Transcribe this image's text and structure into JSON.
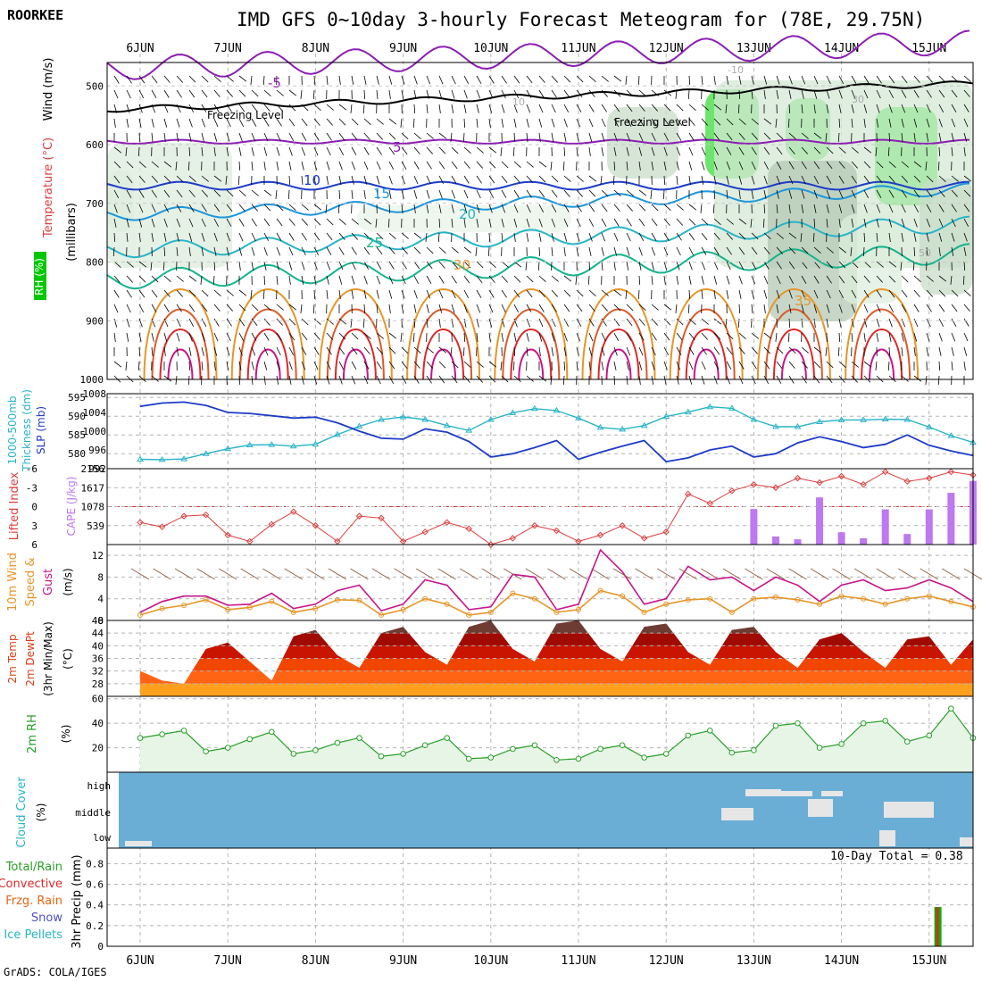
{
  "header": {
    "station": "ROORKEE",
    "title": "IMD GFS 0~10day 3-hourly Forecast Meteogram for (78E, 29.75N)",
    "credit": "GrADS: COLA/IGES",
    "precip_total": "10-Day Total = 0.38"
  },
  "dates": [
    "6JUN",
    "7JUN",
    "8JUN",
    "9JUN",
    "10JUN",
    "11JUN",
    "12JUN",
    "13JUN",
    "14JUN",
    "15JUN"
  ],
  "colors": {
    "purple": "#8c1eb4",
    "blue": "#1e3cc8",
    "cyan": "#28b4c8",
    "teal": "#14b48c",
    "orange": "#e69628",
    "red": "#dc2828",
    "magenta": "#c8148c",
    "rh_green": "#00dc00",
    "cloud_blue": "#6aaed6",
    "cape_purple": "#be78f0",
    "lifted_red": "#dc3c3c"
  },
  "panels": {
    "upper": {
      "labels": {
        "rh": "RH (%)",
        "temp": "Temperature (°C)",
        "wind": "Wind (m/s)",
        "y": "(millibars)"
      },
      "freezing_label": "Freezing Level",
      "contour_labels": [
        "-5",
        "5",
        "10",
        "15",
        "20",
        "25",
        "30",
        "35",
        "-10",
        "10",
        "30",
        "50"
      ]
    },
    "thick": {
      "label1": "1000-500mb",
      "label2": "Thickness (dm)",
      "label3": "SLP (mb)"
    },
    "cape": {
      "label1": "Lifted Index",
      "label2": "CAPE (J/kg)"
    },
    "wind10": {
      "label1": "10m Wind",
      "label2": "Speed &",
      "label3": "Gust",
      "unit": "(m/s)"
    },
    "temp2m": {
      "label1": "2m Temp",
      "label2": "2m DewPt",
      "label3": "(3hr Min/Max)",
      "unit": "(°C)"
    },
    "rh2m": {
      "label1": "2m RH",
      "unit": "(%)"
    },
    "cloud": {
      "label1": "Cloud Cover",
      "unit": "(%)",
      "levels": [
        "high",
        "middle",
        "low"
      ]
    },
    "precip": {
      "label1": "3hr Precip (mm)",
      "legend": [
        "Total/Rain",
        "Convective",
        "Frzg. Rain",
        "Snow",
        "Ice Pellets"
      ]
    }
  },
  "chart_data": [
    {
      "type": "contour",
      "title": "Upper-air temperature / RH / wind",
      "ylabel": "millibars",
      "y_ticks": [
        500,
        600,
        700,
        800,
        900,
        1000
      ],
      "ylim": [
        460,
        1000
      ],
      "x": [
        "6JUN",
        "7JUN",
        "8JUN",
        "9JUN",
        "10JUN",
        "11JUN",
        "12JUN",
        "13JUN",
        "14JUN",
        "15JUN"
      ],
      "temperature_contours_levels": [
        -5,
        5,
        10,
        15,
        20,
        25,
        30,
        35
      ],
      "temperature_contour_pressure": {
        "-5": 470,
        "5": 595,
        "10": 670,
        "15": 720,
        "20": 780,
        "25": 830
      },
      "freezing_level_mb": 540
    },
    {
      "type": "line",
      "title": "1000-500mb Thickness (dm) and SLP (mb)",
      "x_days": [
        0.0,
        0.25,
        0.5,
        0.75,
        1.0,
        1.25,
        1.5,
        1.75,
        2.0,
        2.25,
        2.5,
        2.75,
        3.0,
        3.25,
        3.5,
        3.75,
        4.0,
        4.25,
        4.5,
        4.75,
        5.0,
        5.25,
        5.5,
        5.75,
        6.0,
        6.25,
        6.5,
        6.75,
        7.0,
        7.25,
        7.5,
        7.75,
        8.0,
        8.25,
        8.5,
        8.75,
        9.0,
        9.25,
        9.5
      ],
      "thickness_axis": [
        580,
        585,
        590,
        595
      ],
      "slp_axis": [
        992,
        996,
        1000,
        1004,
        1008
      ],
      "series": [
        {
          "name": "Thickness (dm)",
          "values": [
            578.5,
            578.4,
            578.6,
            580.0,
            581.3,
            582.3,
            582.4,
            582.0,
            582.5,
            585.1,
            587.3,
            589.1,
            589.8,
            589.1,
            587.5,
            586.2,
            589.1,
            590.9,
            592.0,
            591.5,
            589.5,
            587.0,
            586.5,
            587.5,
            589.9,
            591.1,
            592.5,
            592.1,
            589.1,
            587.2,
            587.2,
            588.5,
            589.0,
            589.0,
            589.2,
            589.1,
            587.1,
            584.8,
            583.0
          ]
        },
        {
          "name": "SLP (mb)",
          "values": [
            1005.3,
            1006.0,
            1006.2,
            1005.5,
            1004.0,
            1003.8,
            1003.3,
            1002.8,
            1003.0,
            1001.8,
            1000.0,
            998.5,
            998.3,
            1000.5,
            999.8,
            997.8,
            994.5,
            995.2,
            996.5,
            998.0,
            994.0,
            995.5,
            996.8,
            998.0,
            993.5,
            994.3,
            996.0,
            996.8,
            994.5,
            995.2,
            997.5,
            998.8,
            997.8,
            996.5,
            997.2,
            999.2,
            997.0,
            995.8,
            994.8
          ]
        }
      ]
    },
    {
      "type": "bar",
      "title": "Lifted Index and CAPE (J/kg)",
      "li_axis": [
        6,
        3,
        0,
        -3,
        -6
      ],
      "cape_axis": [
        539,
        1078,
        1617,
        2156
      ],
      "x_days": [
        0.0,
        0.25,
        0.5,
        0.75,
        1.0,
        1.25,
        1.5,
        1.75,
        2.0,
        2.25,
        2.5,
        2.75,
        3.0,
        3.25,
        3.5,
        3.75,
        4.0,
        4.25,
        4.5,
        4.75,
        5.0,
        5.25,
        5.5,
        5.75,
        6.0,
        6.25,
        6.5,
        6.75,
        7.0,
        7.25,
        7.5,
        7.75,
        8.0,
        8.25,
        8.5,
        8.75,
        9.0,
        9.25,
        9.5
      ],
      "series": [
        {
          "name": "Lifted Index",
          "values": [
            2.5,
            3.2,
            1.5,
            1.3,
            4.5,
            5.5,
            2.8,
            0.8,
            3.0,
            5.5,
            1.5,
            1.8,
            5.5,
            4.0,
            2.5,
            3.5,
            6.0,
            5.0,
            3.0,
            3.8,
            5.5,
            4.5,
            3.0,
            5.0,
            4.0,
            -2.0,
            -0.5,
            -2.5,
            -3.5,
            -3.0,
            -4.5,
            -3.8,
            -4.8,
            -3.5,
            -5.5,
            -4.0,
            -4.5,
            -5.5,
            -5.0
          ]
        },
        {
          "name": "CAPE (J/kg)",
          "values": [
            0,
            0,
            0,
            0,
            0,
            0,
            0,
            0,
            0,
            0,
            0,
            0,
            0,
            0,
            0,
            0,
            0,
            0,
            0,
            0,
            0,
            0,
            0,
            0,
            0,
            0,
            0,
            0,
            1010,
            230,
            150,
            1340,
            350,
            180,
            1000,
            300,
            1000,
            1470,
            1810
          ]
        }
      ]
    },
    {
      "type": "line",
      "title": "10m Wind Speed & Gust (m/s)",
      "y_ticks": [
        0,
        4,
        8,
        12
      ],
      "x_days": [
        0.0,
        0.25,
        0.5,
        0.75,
        1.0,
        1.25,
        1.5,
        1.75,
        2.0,
        2.25,
        2.5,
        2.75,
        3.0,
        3.25,
        3.5,
        3.75,
        4.0,
        4.25,
        4.5,
        4.75,
        5.0,
        5.25,
        5.5,
        5.75,
        6.0,
        6.25,
        6.5,
        6.75,
        7.0,
        7.25,
        7.5,
        7.75,
        8.0,
        8.25,
        8.5,
        8.75,
        9.0,
        9.25,
        9.5
      ],
      "series": [
        {
          "name": "Speed",
          "values": [
            1.0,
            2.2,
            2.8,
            3.8,
            2.0,
            2.4,
            3.5,
            1.5,
            2.2,
            3.8,
            3.7,
            1.0,
            2.0,
            4.0,
            3.0,
            1.0,
            1.5,
            5.0,
            4.0,
            1.5,
            2.0,
            5.5,
            4.5,
            1.5,
            3.0,
            3.8,
            4.0,
            1.5,
            4.0,
            4.3,
            3.8,
            3.0,
            4.5,
            4.0,
            3.0,
            4.0,
            4.5,
            3.5,
            2.5
          ]
        },
        {
          "name": "Gust",
          "values": [
            1.5,
            3.5,
            4.5,
            4.5,
            2.8,
            3.0,
            5.0,
            2.2,
            3.0,
            5.5,
            6.5,
            1.8,
            3.0,
            7.5,
            6.5,
            2.0,
            2.5,
            8.5,
            8.0,
            2.0,
            3.0,
            13.0,
            9.0,
            3.0,
            4.0,
            10.0,
            7.5,
            8.0,
            5.5,
            8.0,
            6.5,
            3.5,
            6.5,
            7.5,
            5.5,
            6.0,
            7.5,
            6.0,
            3.5
          ]
        }
      ]
    },
    {
      "type": "area",
      "title": "2m Temp / 2m DewPt (°C)",
      "y_ticks": [
        28,
        32,
        36,
        40,
        44,
        48
      ],
      "x_days": [
        0.0,
        0.25,
        0.5,
        0.75,
        1.0,
        1.25,
        1.5,
        1.75,
        2.0,
        2.25,
        2.5,
        2.75,
        3.0,
        3.25,
        3.5,
        3.75,
        4.0,
        4.25,
        4.5,
        4.75,
        5.0,
        5.25,
        5.5,
        5.75,
        6.0,
        6.25,
        6.5,
        6.75,
        7.0,
        7.25,
        7.5,
        7.75,
        8.0,
        8.25,
        8.5,
        8.75,
        9.0,
        9.25,
        9.5
      ],
      "series": [
        {
          "name": "2m Temp",
          "values": [
            32,
            29,
            28,
            39,
            41,
            35,
            29,
            43,
            45,
            37,
            33,
            44,
            46,
            38,
            34,
            46,
            48,
            39,
            35,
            47,
            48,
            39,
            35,
            46,
            47,
            38,
            34,
            45,
            46,
            38,
            33,
            42,
            44,
            38,
            33,
            42,
            43,
            34,
            42
          ]
        }
      ]
    },
    {
      "type": "area",
      "title": "2m RH (%)",
      "y_ticks": [
        20,
        40,
        60
      ],
      "x_days": [
        0.0,
        0.25,
        0.5,
        0.75,
        1.0,
        1.25,
        1.5,
        1.75,
        2.0,
        2.25,
        2.5,
        2.75,
        3.0,
        3.25,
        3.5,
        3.75,
        4.0,
        4.25,
        4.5,
        4.75,
        5.0,
        5.25,
        5.5,
        5.75,
        6.0,
        6.25,
        6.5,
        6.75,
        7.0,
        7.25,
        7.5,
        7.75,
        8.0,
        8.25,
        8.5,
        8.75,
        9.0,
        9.25,
        9.5
      ],
      "series": [
        {
          "name": "2m RH",
          "values": [
            28,
            31,
            34,
            17,
            20,
            27,
            33,
            15,
            18,
            24,
            28,
            13,
            15,
            22,
            28,
            11,
            12,
            19,
            22,
            10,
            11,
            19,
            22,
            12,
            15,
            30,
            34,
            16,
            18,
            38,
            40,
            20,
            23,
            40,
            42,
            25,
            30,
            52,
            28
          ]
        }
      ]
    },
    {
      "type": "heatmap",
      "title": "Cloud Cover (%)",
      "categories": [
        "high",
        "middle",
        "low"
      ]
    },
    {
      "type": "bar",
      "title": "3hr Precip (mm)",
      "y_ticks": [
        0,
        0.2,
        0.4,
        0.6,
        0.8
      ],
      "series": [
        {
          "name": "Total/Rain",
          "x_day": 9.1,
          "value": 0.38
        }
      ]
    }
  ]
}
